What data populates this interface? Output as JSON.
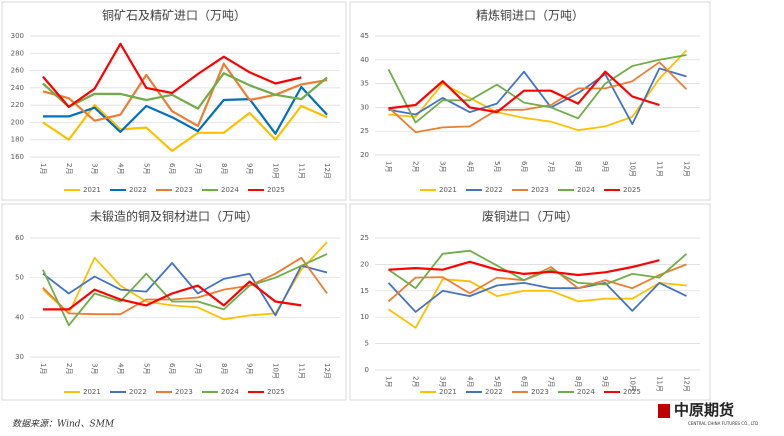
{
  "chart_data": [
    {
      "type": "line",
      "title": "铜矿石及精矿进口（万吨）",
      "categories": [
        "1月",
        "2月",
        "3月",
        "4月",
        "5月",
        "6月",
        "7月",
        "8月",
        "9月",
        "10月",
        "11月",
        "12月"
      ],
      "ylim": [
        160,
        300
      ],
      "yticks": [
        160,
        180,
        200,
        220,
        240,
        260,
        280,
        300
      ],
      "grid": true,
      "legend": "bottom",
      "series": [
        {
          "name": "2021",
          "color": "#FFC000",
          "values": [
            200,
            180,
            220,
            192,
            194,
            167,
            188,
            188,
            211,
            180,
            219,
            206
          ]
        },
        {
          "name": "2022",
          "color": "#0070C0",
          "values": [
            207,
            207,
            217,
            189,
            219,
            206,
            190,
            226,
            227,
            187,
            241,
            209
          ]
        },
        {
          "name": "2023",
          "color": "#ED7D31",
          "values": [
            236,
            228,
            202,
            209,
            255,
            213,
            196,
            268,
            226,
            232,
            244,
            249
          ]
        },
        {
          "name": "2024",
          "color": "#70AD47",
          "values": [
            245,
            218,
            233,
            233,
            226,
            232,
            216,
            257,
            243,
            232,
            227,
            252
          ]
        },
        {
          "name": "2025",
          "color": "#FF0000",
          "values": [
            253,
            218,
            239,
            291,
            240,
            234,
            256,
            276,
            258,
            245,
            252,
            null
          ]
        }
      ]
    },
    {
      "type": "line",
      "title": "精炼铜进口（万吨）",
      "categories": [
        "1月",
        "2月",
        "3月",
        "4月",
        "5月",
        "6月",
        "7月",
        "8月",
        "9月",
        "10月",
        "11月",
        "12月"
      ],
      "ylim": [
        20,
        45
      ],
      "yticks": [
        20,
        25,
        30,
        35,
        40,
        45
      ],
      "grid": true,
      "legend": "bottom",
      "series": [
        {
          "name": "2021",
          "color": "#FFC000",
          "values": [
            28.5,
            28,
            35,
            32,
            29,
            27.8,
            27,
            25.2,
            26,
            28,
            36,
            42
          ]
        },
        {
          "name": "2022",
          "color": "#4472C4",
          "values": [
            29.5,
            28.5,
            32,
            29,
            30.8,
            37.5,
            30,
            33,
            37,
            26.5,
            38.2,
            36.5
          ]
        },
        {
          "name": "2023",
          "color": "#ED7D31",
          "values": [
            30,
            24.8,
            25.8,
            26,
            29.5,
            29.5,
            30.5,
            34,
            34,
            35.5,
            39.5,
            33.8
          ]
        },
        {
          "name": "2024",
          "color": "#70AD47",
          "values": [
            38,
            26.8,
            31.5,
            31.5,
            34.8,
            31,
            30,
            27.7,
            35,
            38.7,
            40,
            41
          ]
        },
        {
          "name": "2025",
          "color": "#FF0000",
          "values": [
            29.8,
            30.5,
            35.5,
            30,
            29,
            33.5,
            33.5,
            30.8,
            37.5,
            32.3,
            30.5,
            null
          ]
        }
      ]
    },
    {
      "type": "line",
      "title": "未锻造的铜及铜材进口（万吨）",
      "categories": [
        "1月",
        "2月",
        "3月",
        "4月",
        "5月",
        "6月",
        "7月",
        "8月",
        "9月",
        "10月",
        "11月",
        "12月"
      ],
      "ylim": [
        30,
        60
      ],
      "yticks": [
        30,
        40,
        50,
        60
      ],
      "grid": true,
      "legend": "bottom",
      "series": [
        {
          "name": "2021",
          "color": "#FFC000",
          "values": [
            47,
            41,
            55,
            48,
            44,
            43,
            42.5,
            39.5,
            40.5,
            41,
            52,
            59
          ]
        },
        {
          "name": "2022",
          "color": "#4472C4",
          "values": [
            51,
            46,
            50.3,
            47,
            46.5,
            53.7,
            46,
            49.7,
            51,
            40.5,
            53,
            51.3
          ]
        },
        {
          "name": "2023",
          "color": "#ED7D31",
          "values": [
            47.5,
            41,
            40.8,
            40.8,
            44.5,
            44.5,
            45,
            47,
            48,
            51,
            55,
            46
          ]
        },
        {
          "name": "2024",
          "color": "#70AD47",
          "values": [
            52,
            38,
            46,
            44,
            51,
            44,
            44,
            42,
            48,
            50,
            53,
            56
          ]
        },
        {
          "name": "2025",
          "color": "#FF0000",
          "values": [
            42,
            42,
            47,
            44.5,
            43,
            46,
            48,
            43,
            49,
            44,
            43,
            null
          ]
        }
      ]
    },
    {
      "type": "line",
      "title": "废铜进口（万吨）",
      "categories": [
        "1月",
        "2月",
        "3月",
        "4月",
        "5月",
        "6月",
        "7月",
        "8月",
        "9月",
        "10月",
        "11月",
        "12月"
      ],
      "ylim": [
        0,
        25
      ],
      "yticks": [
        0,
        5,
        10,
        15,
        20,
        25
      ],
      "grid": true,
      "legend": "bottom",
      "series": [
        {
          "name": "2021",
          "color": "#FFC000",
          "values": [
            11.5,
            8,
            17.2,
            16.8,
            14,
            15,
            15,
            13,
            13.5,
            13.5,
            16.5,
            16
          ]
        },
        {
          "name": "2022",
          "color": "#4472C4",
          "values": [
            16.5,
            11,
            15,
            14,
            16,
            16.5,
            15.5,
            15.5,
            16.5,
            11.2,
            16.5,
            14
          ]
        },
        {
          "name": "2023",
          "color": "#ED7D31",
          "values": [
            13,
            17.5,
            17.6,
            14.5,
            17.5,
            17,
            19.5,
            15.5,
            17,
            15.5,
            18,
            20
          ]
        },
        {
          "name": "2024",
          "color": "#70AD47",
          "values": [
            19,
            15.5,
            22,
            22.6,
            19.8,
            17,
            19,
            16.5,
            16.2,
            18.2,
            17.5,
            22
          ]
        },
        {
          "name": "2025",
          "color": "#FF0000",
          "values": [
            19,
            19.3,
            19,
            20.5,
            19,
            18.2,
            18.6,
            18,
            18.5,
            19.5,
            20.8,
            null
          ]
        }
      ]
    }
  ],
  "source": "数据来源：Wind、SMM",
  "logo": {
    "name": "中原期货",
    "subtitle": "CENTRAL CHINA FUTURES CO., LTD"
  }
}
